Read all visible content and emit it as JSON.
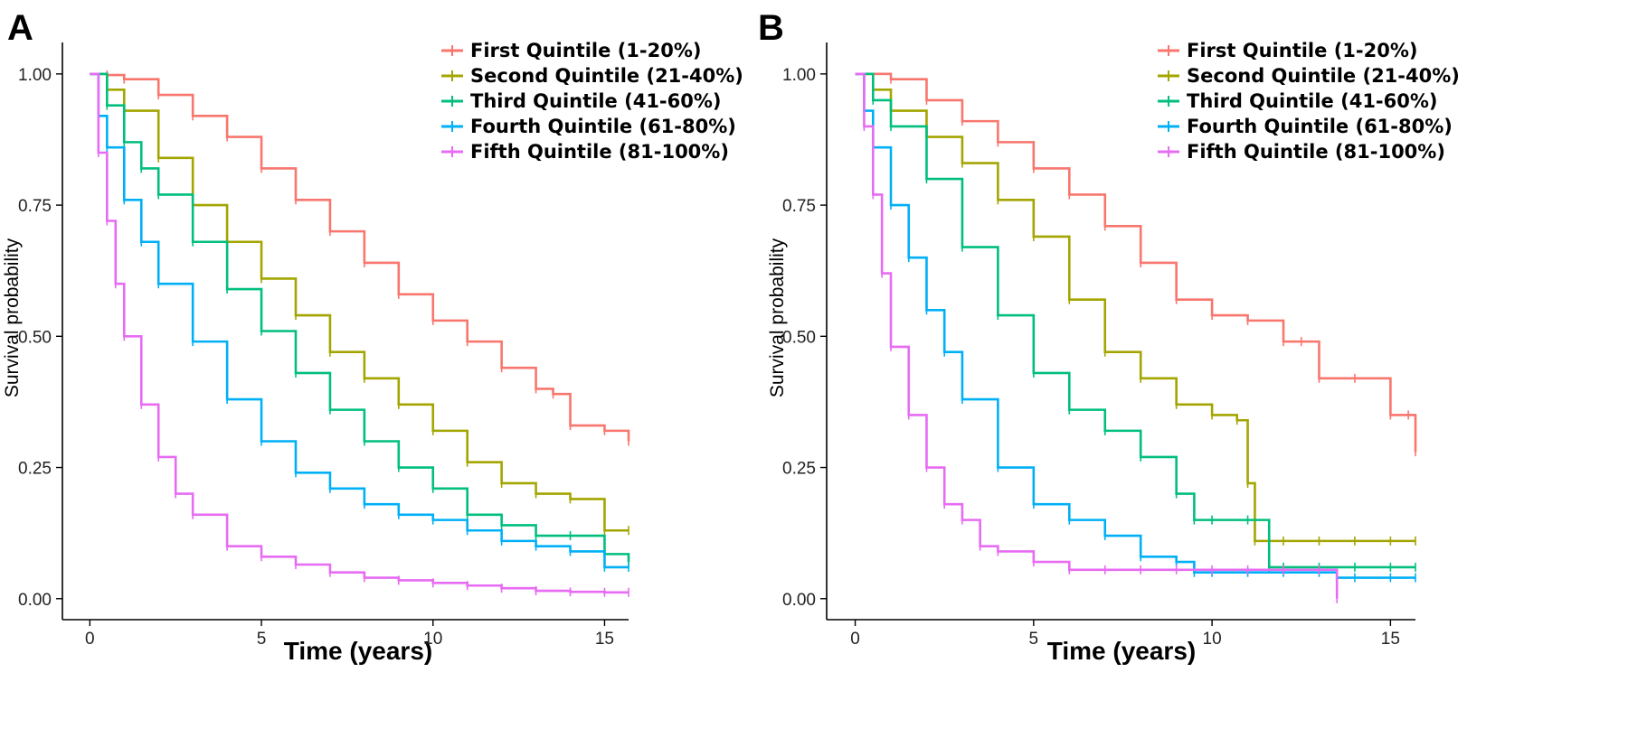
{
  "chart_data": [
    {
      "panel": "A",
      "type": "line",
      "xlabel": "Time (years)",
      "ylabel": "Survival probability",
      "xlim": [
        -0.8,
        15.7
      ],
      "ylim": [
        -0.04,
        1.06
      ],
      "xticks": [
        0,
        5,
        10,
        15
      ],
      "yticks": [
        0.0,
        0.25,
        0.5,
        0.75,
        1.0
      ],
      "ytick_labels": [
        "0.00",
        "0.25",
        "0.50",
        "0.75",
        "1.00"
      ],
      "grid": false,
      "legend_position": "top-right",
      "series": [
        {
          "name": "First Quintile (1-20%)",
          "color": "#F8766D",
          "x": [
            0,
            0.5,
            1,
            2,
            3,
            4,
            5,
            6,
            7,
            8,
            9,
            10,
            11,
            12,
            13,
            13.5,
            14,
            15,
            15.7
          ],
          "y": [
            1.0,
            0.998,
            0.99,
            0.96,
            0.92,
            0.88,
            0.82,
            0.76,
            0.7,
            0.64,
            0.58,
            0.53,
            0.49,
            0.44,
            0.4,
            0.39,
            0.33,
            0.32,
            0.3
          ]
        },
        {
          "name": "Second Quintile (21-40%)",
          "color": "#A3A500",
          "x": [
            0,
            0.5,
            1,
            2,
            3,
            4,
            5,
            6,
            7,
            8,
            9,
            10,
            11,
            12,
            13,
            14,
            15,
            15.7
          ],
          "y": [
            1.0,
            0.97,
            0.93,
            0.84,
            0.75,
            0.68,
            0.61,
            0.54,
            0.47,
            0.42,
            0.37,
            0.32,
            0.26,
            0.22,
            0.2,
            0.19,
            0.13,
            0.13
          ]
        },
        {
          "name": "Third Quintile (41-60%)",
          "color": "#00BF7D",
          "x": [
            0,
            0.5,
            1,
            1.5,
            2,
            3,
            4,
            5,
            6,
            7,
            8,
            9,
            10,
            11,
            12,
            13,
            14,
            15,
            15.7
          ],
          "y": [
            1.0,
            0.94,
            0.87,
            0.82,
            0.77,
            0.68,
            0.59,
            0.51,
            0.43,
            0.36,
            0.3,
            0.25,
            0.21,
            0.16,
            0.14,
            0.12,
            0.12,
            0.085,
            0.07
          ]
        },
        {
          "name": "Fourth Quintile (61-80%)",
          "color": "#00B0F6",
          "x": [
            0,
            0.25,
            0.5,
            1,
            1.5,
            2,
            3,
            4,
            5,
            6,
            7,
            8,
            9,
            10,
            11,
            12,
            13,
            14,
            15,
            15.7
          ],
          "y": [
            1.0,
            0.92,
            0.86,
            0.76,
            0.68,
            0.6,
            0.49,
            0.38,
            0.3,
            0.24,
            0.21,
            0.18,
            0.16,
            0.15,
            0.13,
            0.11,
            0.1,
            0.09,
            0.06,
            0.06
          ]
        },
        {
          "name": "Fifth Quintile (81-100%)",
          "color": "#E76BF3",
          "x": [
            0,
            0.25,
            0.5,
            0.75,
            1,
            1.5,
            2,
            2.5,
            3,
            4,
            5,
            6,
            7,
            8,
            9,
            10,
            11,
            12,
            13,
            14,
            15,
            15.7
          ],
          "y": [
            1.0,
            0.85,
            0.72,
            0.6,
            0.5,
            0.37,
            0.27,
            0.2,
            0.16,
            0.1,
            0.08,
            0.065,
            0.05,
            0.04,
            0.035,
            0.03,
            0.025,
            0.02,
            0.015,
            0.013,
            0.012,
            0.012
          ]
        }
      ]
    },
    {
      "panel": "B",
      "type": "line",
      "xlabel": "Time (years)",
      "ylabel": "Survival probability",
      "xlim": [
        -0.8,
        15.7
      ],
      "ylim": [
        -0.04,
        1.06
      ],
      "xticks": [
        0,
        5,
        10,
        15
      ],
      "yticks": [
        0.0,
        0.25,
        0.5,
        0.75,
        1.0
      ],
      "ytick_labels": [
        "0.00",
        "0.25",
        "0.50",
        "0.75",
        "1.00"
      ],
      "grid": false,
      "legend_position": "top-right",
      "series": [
        {
          "name": "First Quintile (1-20%)",
          "color": "#F8766D",
          "x": [
            0,
            1,
            2,
            3,
            4,
            5,
            6,
            7,
            8,
            9,
            10,
            11,
            12,
            12.5,
            13,
            14,
            15,
            15.5,
            15.7
          ],
          "y": [
            1.0,
            0.99,
            0.95,
            0.91,
            0.87,
            0.82,
            0.77,
            0.71,
            0.64,
            0.57,
            0.54,
            0.53,
            0.49,
            0.49,
            0.42,
            0.42,
            0.35,
            0.35,
            0.28
          ]
        },
        {
          "name": "Second Quintile (21-40%)",
          "color": "#A3A500",
          "x": [
            0,
            0.5,
            1,
            2,
            3,
            4,
            5,
            6,
            7,
            8,
            9,
            10,
            10.7,
            11,
            11.2,
            12,
            13,
            14,
            15,
            15.7
          ],
          "y": [
            1.0,
            0.97,
            0.93,
            0.88,
            0.83,
            0.76,
            0.69,
            0.57,
            0.47,
            0.42,
            0.37,
            0.35,
            0.34,
            0.22,
            0.11,
            0.11,
            0.11,
            0.11,
            0.11,
            0.11
          ]
        },
        {
          "name": "Third Quintile (41-60%)",
          "color": "#00BF7D",
          "x": [
            0,
            0.5,
            1,
            2,
            3,
            4,
            5,
            6,
            7,
            8,
            9,
            9.5,
            10,
            11,
            11.6,
            12,
            13,
            14,
            15,
            15.7
          ],
          "y": [
            1.0,
            0.95,
            0.9,
            0.8,
            0.67,
            0.54,
            0.43,
            0.36,
            0.32,
            0.27,
            0.2,
            0.15,
            0.15,
            0.15,
            0.06,
            0.06,
            0.06,
            0.06,
            0.06,
            0.06
          ]
        },
        {
          "name": "Fourth Quintile (61-80%)",
          "color": "#00B0F6",
          "x": [
            0,
            0.25,
            0.5,
            1,
            1.5,
            2,
            2.5,
            3,
            4,
            5,
            6,
            7,
            8,
            9,
            9.5,
            10,
            11,
            12,
            13,
            13.5,
            14,
            15,
            15.7
          ],
          "y": [
            1.0,
            0.93,
            0.86,
            0.75,
            0.65,
            0.55,
            0.47,
            0.38,
            0.25,
            0.18,
            0.15,
            0.12,
            0.08,
            0.07,
            0.05,
            0.05,
            0.05,
            0.05,
            0.05,
            0.04,
            0.04,
            0.04,
            0.04
          ]
        },
        {
          "name": "Fifth Quintile (81-100%)",
          "color": "#E76BF3",
          "x": [
            0,
            0.25,
            0.5,
            0.75,
            1,
            1.5,
            2,
            2.5,
            3,
            3.5,
            4,
            5,
            6,
            7,
            8,
            9,
            10,
            11,
            12,
            13,
            13.5
          ],
          "y": [
            1.0,
            0.9,
            0.77,
            0.62,
            0.48,
            0.35,
            0.25,
            0.18,
            0.15,
            0.1,
            0.09,
            0.07,
            0.055,
            0.055,
            0.055,
            0.055,
            0.055,
            0.055,
            0.055,
            0.055,
            0.0
          ]
        }
      ]
    }
  ]
}
